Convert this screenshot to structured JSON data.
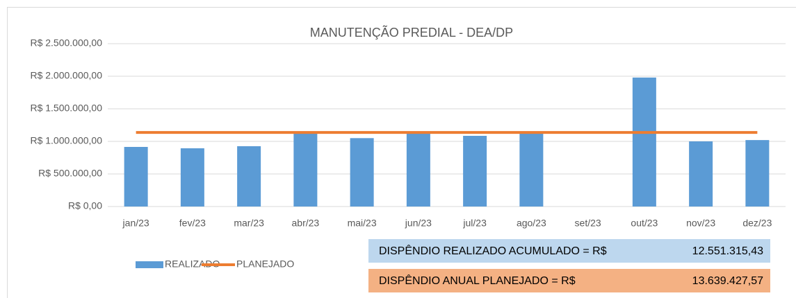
{
  "chart_data": {
    "type": "bar",
    "title": "MANUTENÇÃO PREDIAL - DEA/DP",
    "categories": [
      "jan/23",
      "fev/23",
      "mar/23",
      "abr/23",
      "mai/23",
      "jun/23",
      "jul/23",
      "ago/23",
      "set/23",
      "out/23",
      "nov/23",
      "dez/23"
    ],
    "series": [
      {
        "name": "REALIZADO",
        "type": "bar",
        "color": "#5b9bd5",
        "values": [
          915000,
          894000,
          926000,
          1140000,
          1050000,
          1140000,
          1085000,
          1140000,
          null,
          1980000,
          1000000,
          1020000
        ]
      },
      {
        "name": "PLANEJADO",
        "type": "line",
        "color": "#ed7d31",
        "values": [
          1136619,
          1136619,
          1136619,
          1136619,
          1136619,
          1136619,
          1136619,
          1136619,
          1136619,
          1136619,
          1136619,
          1136619
        ]
      }
    ],
    "ylim": [
      0,
      2500000
    ],
    "yticks": [
      {
        "value": 0,
        "label": "R$ 0,00"
      },
      {
        "value": 500000,
        "label": "R$ 500.000,00"
      },
      {
        "value": 1000000,
        "label": "R$ 1.000.000,00"
      },
      {
        "value": 1500000,
        "label": "R$ 1.500.000,00"
      },
      {
        "value": 2000000,
        "label": "R$ 2.000.000,00"
      },
      {
        "value": 2500000,
        "label": "R$ 2.500.000,00"
      }
    ],
    "grid": true,
    "legend": "bottom-left",
    "summary": [
      {
        "label": "DISPÊNDIO REALIZADO ACUMULADO = R$",
        "value": "12.551.315,43",
        "color": "#bdd7ee"
      },
      {
        "label": "DISPÊNDIO ANUAL PLANEJADO = R$",
        "value": "13.639.427,57",
        "color": "#f4b183"
      }
    ]
  }
}
